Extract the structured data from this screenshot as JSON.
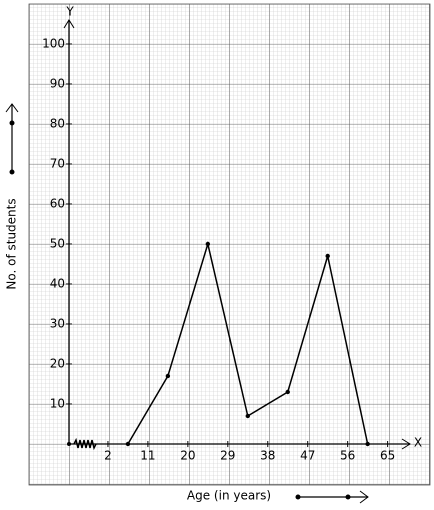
{
  "chart_data": {
    "type": "line",
    "x_label": "Age (in years)",
    "y_label": "No. of students",
    "x_axis_name": "X",
    "y_axis_name": "Y",
    "x": [
      6.5,
      15.5,
      24.5,
      33.5,
      42.5,
      51.5,
      60.5
    ],
    "values": [
      0,
      17,
      50,
      7,
      13,
      47,
      0
    ],
    "color": "#000000",
    "xlim": [
      -7,
      75
    ],
    "xticks": [
      2,
      11,
      20,
      29,
      38,
      47,
      56,
      65
    ],
    "ylim": [
      0,
      100
    ],
    "yticks": [
      10,
      20,
      30,
      40,
      50,
      60,
      70,
      80,
      90,
      100
    ],
    "grid": true
  }
}
